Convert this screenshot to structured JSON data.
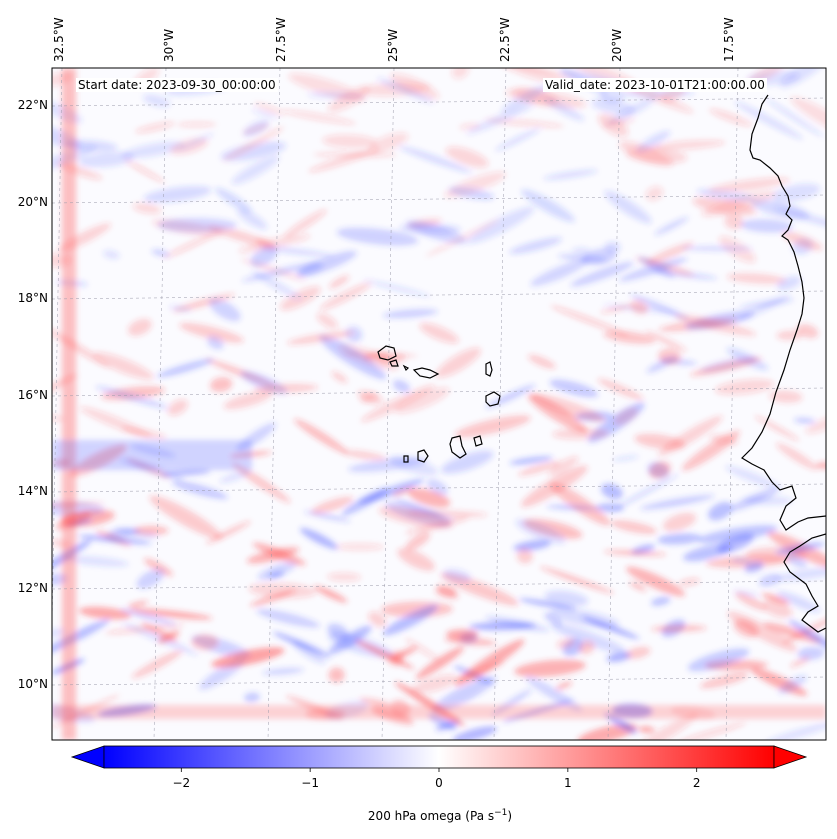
{
  "map": {
    "start_date": "Start date: 2023-09-30_00:00:00",
    "valid_date": "Valid_date: 2023-10-01T21:00:00.00",
    "lon_labels": [
      "32.5°W",
      "30°W",
      "27.5°W",
      "25°W",
      "22.5°W",
      "20°W",
      "17.5°W"
    ],
    "lat_labels": [
      "22°N",
      "20°N",
      "18°N",
      "16°N",
      "14°N",
      "12°N",
      "10°N"
    ],
    "field": "200 hPa omega",
    "colormap": "bwr",
    "colors": {
      "negative": "#0000ff",
      "zero": "#ffffff",
      "positive": "#ff0000",
      "coast": "#000000"
    }
  },
  "colorbar": {
    "label": "200 hPa omega (Pa s",
    "label_exp": "−1",
    "label_close": ")",
    "ticks": [
      {
        "value": -2,
        "label": "−2"
      },
      {
        "value": -1,
        "label": "−1"
      },
      {
        "value": 0,
        "label": "0"
      },
      {
        "value": 1,
        "label": "1"
      },
      {
        "value": 2,
        "label": "2"
      }
    ],
    "range": [
      -2.6,
      2.6
    ],
    "extend": "both"
  }
}
